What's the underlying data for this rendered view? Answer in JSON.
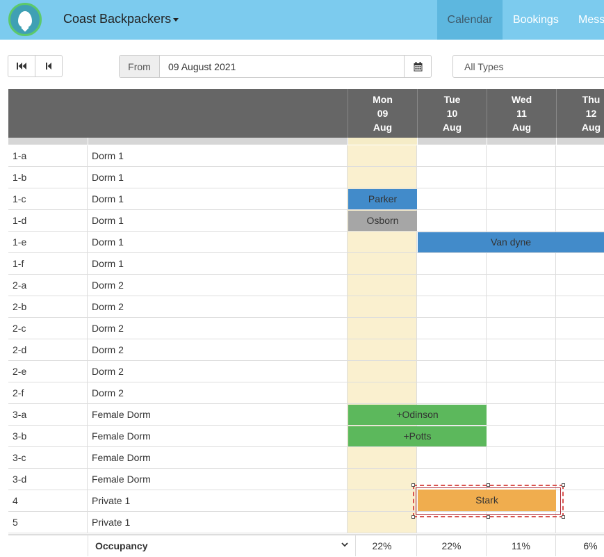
{
  "app": {
    "brand": "Coast Backpackers"
  },
  "nav": {
    "tabs": [
      "Calendar",
      "Bookings",
      "Mess"
    ],
    "active": "Calendar"
  },
  "toolbar": {
    "from_label": "From",
    "from_value": "09 August 2021",
    "types_value": "All Types"
  },
  "days": [
    {
      "dow": "Mon",
      "date": "09",
      "month": "Aug",
      "today": true
    },
    {
      "dow": "Tue",
      "date": "10",
      "month": "Aug",
      "today": false
    },
    {
      "dow": "Wed",
      "date": "11",
      "month": "Aug",
      "today": false
    },
    {
      "dow": "Thu",
      "date": "12",
      "month": "Aug",
      "today": false
    }
  ],
  "rooms": [
    {
      "room": "1-a",
      "type": "Dorm 1"
    },
    {
      "room": "1-b",
      "type": "Dorm 1"
    },
    {
      "room": "1-c",
      "type": "Dorm 1"
    },
    {
      "room": "1-d",
      "type": "Dorm 1"
    },
    {
      "room": "1-e",
      "type": "Dorm 1"
    },
    {
      "room": "1-f",
      "type": "Dorm 1"
    },
    {
      "room": "2-a",
      "type": "Dorm 2"
    },
    {
      "room": "2-b",
      "type": "Dorm 2"
    },
    {
      "room": "2-c",
      "type": "Dorm 2"
    },
    {
      "room": "2-d",
      "type": "Dorm 2"
    },
    {
      "room": "2-e",
      "type": "Dorm 2"
    },
    {
      "room": "2-f",
      "type": "Dorm 2"
    },
    {
      "room": "3-a",
      "type": "Female Dorm"
    },
    {
      "room": "3-b",
      "type": "Female Dorm"
    },
    {
      "room": "3-c",
      "type": "Female Dorm"
    },
    {
      "room": "3-d",
      "type": "Female Dorm"
    },
    {
      "room": "4",
      "type": "Private 1"
    },
    {
      "room": "5",
      "type": "Private 1"
    }
  ],
  "bookings": [
    {
      "name": "Parker",
      "row": 2,
      "start_day": 0,
      "nights": 1,
      "color": "#428bca"
    },
    {
      "name": "Osborn",
      "row": 3,
      "start_day": 0,
      "nights": 1,
      "color": "#a6a6a6"
    },
    {
      "name": "Van dyne",
      "row": 4,
      "start_day": 1,
      "nights": 3,
      "color": "#428bca"
    },
    {
      "name": "+Odinson",
      "row": 12,
      "start_day": 0,
      "nights": 2,
      "color": "#5cb85c"
    },
    {
      "name": "+Potts",
      "row": 13,
      "start_day": 0,
      "nights": 2,
      "color": "#5cb85c"
    },
    {
      "name": "Stark",
      "row": 16,
      "start_day": 1,
      "nights": 2,
      "color": "#f0ad4e"
    }
  ],
  "occupancy": {
    "label": "Occupancy",
    "values": [
      "22%",
      "22%",
      "11%",
      "6%"
    ]
  }
}
